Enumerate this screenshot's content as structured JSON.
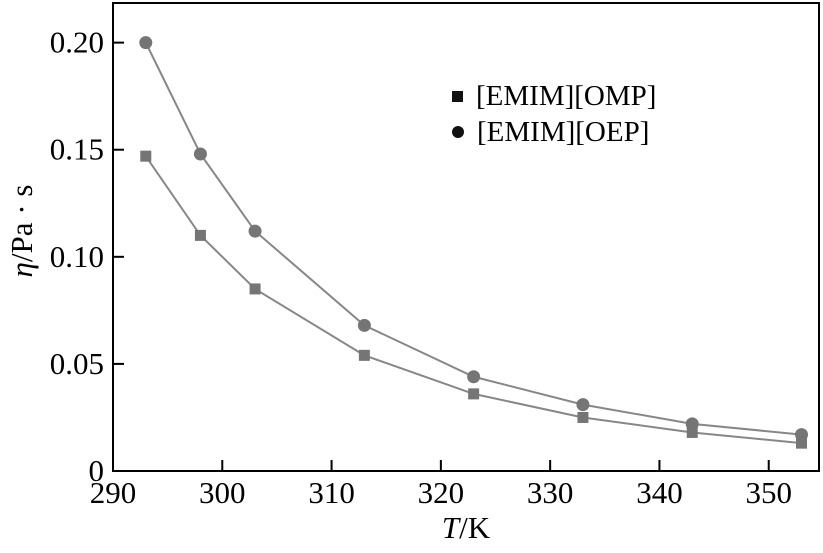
{
  "chart_data": {
    "type": "line",
    "title": "",
    "x": [
      293,
      298,
      303,
      313,
      323,
      333,
      343,
      353
    ],
    "series": [
      {
        "name": "[EMIM][OMP]",
        "marker": "square",
        "values": [
          0.147,
          0.11,
          0.085,
          0.054,
          0.036,
          0.025,
          0.018,
          0.013
        ]
      },
      {
        "name": "[EMIM][OEP]",
        "marker": "circle",
        "values": [
          0.2,
          0.148,
          0.112,
          0.068,
          0.044,
          0.031,
          0.022,
          0.017
        ]
      }
    ],
    "xlabel_var": "T",
    "xlabel_rest": "/K",
    "ylabel_var": "η",
    "ylabel_rest": "/Pa · s",
    "xlim": [
      290,
      354.6
    ],
    "ylim": [
      0,
      0.2185
    ],
    "xticks": [
      290,
      300,
      310,
      320,
      330,
      340,
      350
    ],
    "xtick_labels": [
      "290",
      "300",
      "310",
      "320",
      "330",
      "340",
      "350"
    ],
    "yticks": [
      0,
      0.05,
      0.1,
      0.15,
      0.2
    ],
    "ytick_labels": [
      "0",
      "0.05",
      "0.10",
      "0.15",
      "0.20"
    ],
    "grid": false,
    "legend_position": "upper-right-inside",
    "colors": {
      "axis": "#000000",
      "text": "#000000",
      "series_marker": "#757575",
      "series_line": "#878787",
      "legend_marker": "#111111",
      "background": "#ffffff"
    }
  }
}
